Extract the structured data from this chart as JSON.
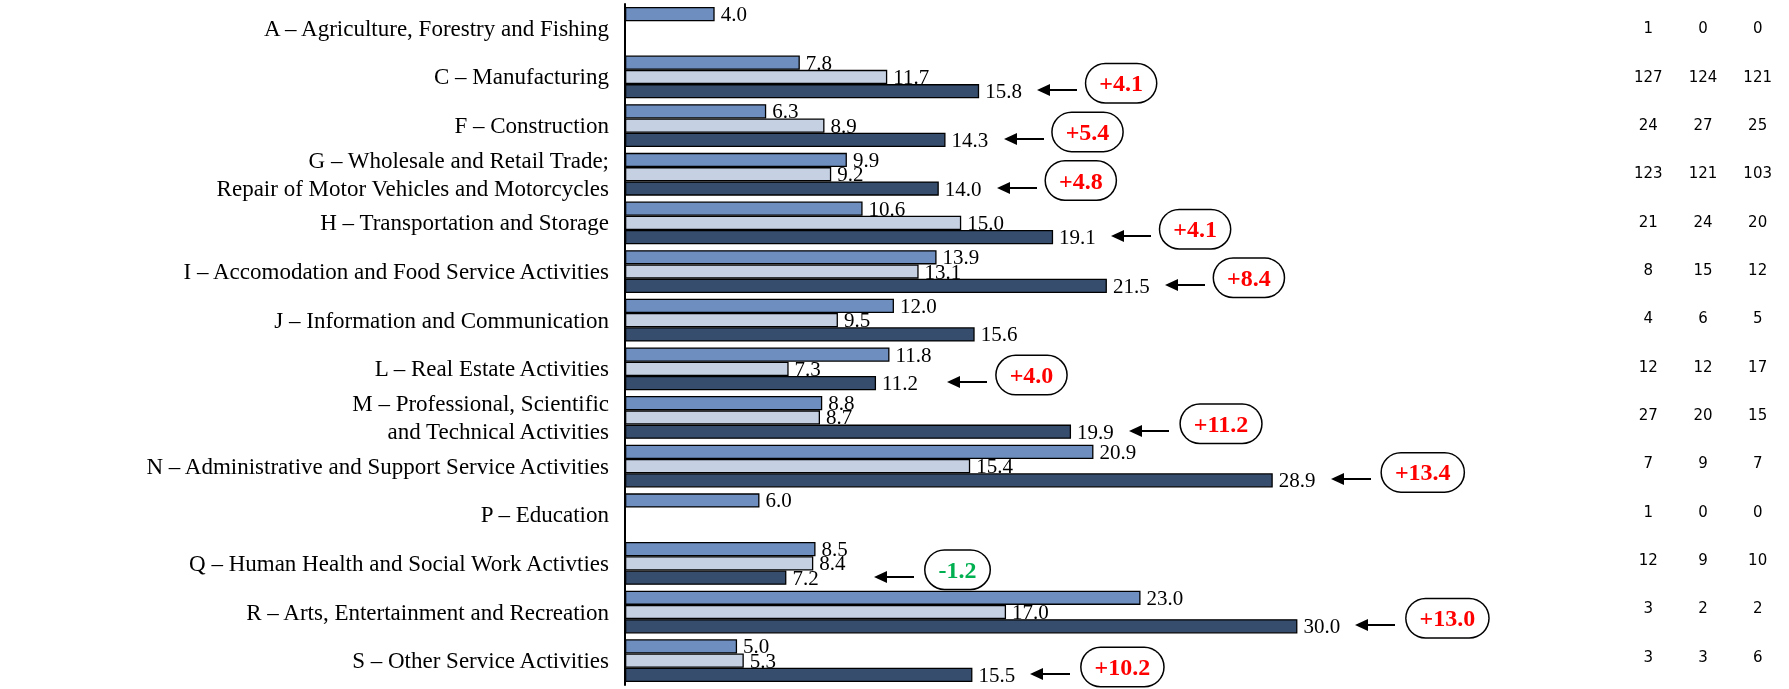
{
  "chart_data": [
    {
      "type": "bar",
      "orientation": "horizontal",
      "tick_labels": "y",
      "categories": [
        "A – Agriculture, Forestry and Fishing",
        "C – Manufacturing",
        "F – Construction",
        "G – Wholesale and Retail Trade;\nRepair of Motor Vehicles and Motorcycles",
        "H – Transportation and Storage",
        "I – Accomodation and Food Service Activities",
        "J – Information and Communication",
        "L – Real Estate Activities",
        "M – Professional, Scientific\nand Technical Activities",
        "N – Administrative and Support Service Activities",
        "P – Education",
        "Q – Human Health and Social Work Activties",
        "R – Arts, Entertainment and Recreation",
        "S – Other Service Activities"
      ],
      "series": [
        {
          "color": "#6d8ebf",
          "values": [
            4.0,
            7.8,
            6.3,
            9.9,
            10.6,
            13.9,
            12.0,
            11.8,
            8.8,
            20.9,
            6.0,
            8.5,
            23.0,
            5.0
          ],
          "value_labels": [
            "4.0",
            "7.8",
            "6.3",
            "9.9",
            "10.6",
            "13.9",
            "12.0",
            "11.8",
            "8.8",
            "20.9",
            "6.0",
            "8.5",
            "23.0",
            "5.0"
          ]
        },
        {
          "color": "#c5d0e3",
          "values": [
            null,
            11.7,
            8.9,
            9.2,
            15.0,
            13.1,
            9.5,
            7.3,
            8.7,
            15.4,
            null,
            8.4,
            17.0,
            5.3
          ],
          "value_labels": [
            null,
            "11.7",
            "8.9",
            "9.2",
            "15.0",
            "13.1",
            "9.5",
            "7.3",
            "8.7",
            "15.4",
            null,
            "8.4",
            "17.0",
            "5.3"
          ]
        },
        {
          "color": "#364d6e",
          "values": [
            null,
            15.8,
            14.3,
            14.0,
            19.1,
            21.5,
            15.6,
            11.2,
            19.9,
            28.9,
            null,
            7.2,
            30.0,
            15.5
          ],
          "value_labels": [
            null,
            "15.8",
            "14.3",
            "14.0",
            "19.1",
            "21.5",
            "15.6",
            "11.2",
            "19.9",
            "28.9",
            null,
            "7.2",
            "30.0",
            "15.5"
          ]
        }
      ],
      "annotations": [
        "+4.1",
        "+5.4",
        "+4.8",
        "+4.1",
        "+8.4",
        "+4.0",
        "+11.2",
        "+13.4",
        "-1.2",
        "+13.0",
        "+10.2"
      ]
    },
    {
      "type": "heatmap",
      "data_labels": true,
      "categories": [
        null,
        null,
        null
      ],
      "y_categories": [
        null,
        null,
        null,
        null,
        null,
        null,
        null,
        null,
        null,
        null,
        null,
        null,
        null,
        null
      ],
      "cells": [
        [
          1,
          0,
          0
        ],
        [
          127,
          124,
          121
        ],
        [
          24,
          27,
          25
        ],
        [
          123,
          121,
          103
        ],
        [
          21,
          24,
          20
        ],
        [
          8,
          15,
          12
        ],
        [
          4,
          6,
          5
        ],
        [
          12,
          12,
          17
        ],
        [
          27,
          20,
          15
        ],
        [
          7,
          9,
          7
        ],
        [
          1,
          0,
          0
        ],
        [
          12,
          9,
          10
        ],
        [
          3,
          2,
          2
        ],
        [
          3,
          3,
          6
        ]
      ]
    }
  ]
}
